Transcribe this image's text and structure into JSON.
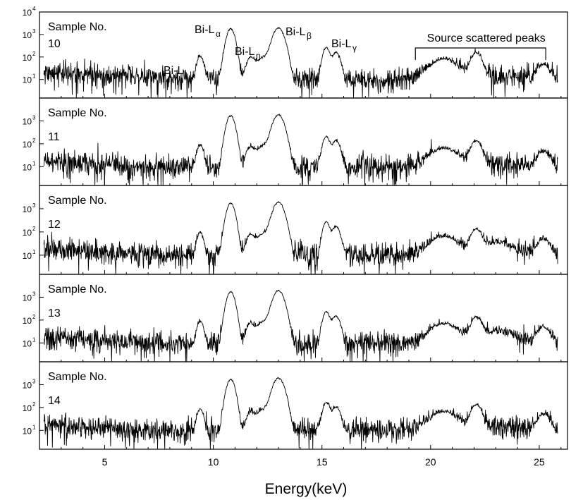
{
  "chart_data": {
    "type": "line",
    "xlabel": "Energy(keV)",
    "x_range": [
      2.0,
      26.3
    ],
    "x_ticks": [
      5,
      10,
      15,
      20,
      25
    ],
    "y_scale": "log",
    "y_range": [
      1.5,
      10000
    ],
    "y_tick_labels": [
      {
        "base": "10",
        "exp": "1"
      },
      {
        "base": "10",
        "exp": "2"
      },
      {
        "base": "10",
        "exp": "3"
      },
      {
        "base": "10",
        "exp": "4"
      }
    ],
    "sample_prefix": "Sample No.",
    "peak_labels": [
      {
        "main": "Bi-L",
        "sub": "l"
      },
      {
        "main": "Bi-L",
        "sub": "α"
      },
      {
        "main": "Bi-L",
        "sub": "η"
      },
      {
        "main": "Bi-L",
        "sub": "β"
      },
      {
        "main": "Bi-L",
        "sub": "γ"
      }
    ],
    "bracket_annotation": "Source scattered peaks",
    "bracket_range": [
      19.3,
      25.3
    ],
    "noise_hint": "log-noise sigma ~0.55 in ln-space, with occasional dropouts",
    "series": [
      {
        "name": "10",
        "baseline": [
          [
            2.0,
            20
          ],
          [
            4,
            17
          ],
          [
            6,
            13
          ],
          [
            8,
            11
          ],
          [
            10,
            11
          ],
          [
            12,
            11
          ],
          [
            14,
            10
          ],
          [
            16,
            10
          ],
          [
            18,
            10
          ],
          [
            20,
            13
          ],
          [
            22,
            15
          ],
          [
            24,
            15
          ],
          [
            26,
            10
          ]
        ],
        "peaks": [
          {
            "x": 9.4,
            "height": 95,
            "width": 0.12
          },
          {
            "x": 10.8,
            "height": 1800,
            "width": 0.15
          },
          {
            "x": 11.7,
            "height": 75,
            "width": 0.15
          },
          {
            "x": 13.0,
            "height": 1900,
            "width": 0.2
          },
          {
            "x": 12.4,
            "height": 90,
            "width": 0.35
          },
          {
            "x": 15.2,
            "height": 250,
            "width": 0.13
          },
          {
            "x": 15.65,
            "height": 150,
            "width": 0.15
          },
          {
            "x": 20.6,
            "height": 70,
            "width": 0.5
          },
          {
            "x": 22.1,
            "height": 140,
            "width": 0.2
          },
          {
            "x": 25.2,
            "height": 35,
            "width": 0.25
          }
        ]
      },
      {
        "name": "11",
        "baseline": [
          [
            2.0,
            18
          ],
          [
            4,
            14
          ],
          [
            6,
            11
          ],
          [
            8,
            10
          ],
          [
            10,
            10
          ],
          [
            12,
            10
          ],
          [
            14,
            10
          ],
          [
            16,
            10
          ],
          [
            18,
            10
          ],
          [
            20,
            12
          ],
          [
            22,
            14
          ],
          [
            24,
            13
          ],
          [
            26,
            9
          ]
        ],
        "peaks": [
          {
            "x": 9.4,
            "height": 80,
            "width": 0.12
          },
          {
            "x": 10.8,
            "height": 1700,
            "width": 0.15
          },
          {
            "x": 11.7,
            "height": 55,
            "width": 0.15
          },
          {
            "x": 13.0,
            "height": 1800,
            "width": 0.2
          },
          {
            "x": 12.4,
            "height": 80,
            "width": 0.35
          },
          {
            "x": 15.2,
            "height": 200,
            "width": 0.13
          },
          {
            "x": 15.65,
            "height": 130,
            "width": 0.15
          },
          {
            "x": 20.6,
            "height": 55,
            "width": 0.5
          },
          {
            "x": 22.1,
            "height": 120,
            "width": 0.2
          },
          {
            "x": 25.2,
            "height": 35,
            "width": 0.25
          }
        ]
      },
      {
        "name": "12",
        "baseline": [
          [
            2.0,
            22
          ],
          [
            4,
            14
          ],
          [
            6,
            11
          ],
          [
            8,
            10
          ],
          [
            10,
            10
          ],
          [
            12,
            10
          ],
          [
            14,
            10
          ],
          [
            16,
            10
          ],
          [
            18,
            10
          ],
          [
            20,
            13
          ],
          [
            22,
            15
          ],
          [
            24,
            14
          ],
          [
            26,
            9
          ]
        ],
        "peaks": [
          {
            "x": 9.4,
            "height": 85,
            "width": 0.12
          },
          {
            "x": 10.8,
            "height": 1700,
            "width": 0.15
          },
          {
            "x": 11.7,
            "height": 55,
            "width": 0.15
          },
          {
            "x": 13.0,
            "height": 1900,
            "width": 0.2
          },
          {
            "x": 12.4,
            "height": 80,
            "width": 0.35
          },
          {
            "x": 15.2,
            "height": 260,
            "width": 0.13
          },
          {
            "x": 15.65,
            "height": 160,
            "width": 0.15
          },
          {
            "x": 20.6,
            "height": 55,
            "width": 0.5
          },
          {
            "x": 22.1,
            "height": 120,
            "width": 0.2
          },
          {
            "x": 23.1,
            "height": 25,
            "width": 0.5
          },
          {
            "x": 25.2,
            "height": 40,
            "width": 0.25
          }
        ]
      },
      {
        "name": "13",
        "baseline": [
          [
            2.0,
            18
          ],
          [
            4,
            14
          ],
          [
            6,
            11
          ],
          [
            8,
            10
          ],
          [
            10,
            10
          ],
          [
            12,
            10
          ],
          [
            14,
            10
          ],
          [
            16,
            10
          ],
          [
            18,
            10
          ],
          [
            20,
            13
          ],
          [
            22,
            15
          ],
          [
            24,
            14
          ],
          [
            26,
            9
          ]
        ],
        "peaks": [
          {
            "x": 9.4,
            "height": 80,
            "width": 0.12
          },
          {
            "x": 10.8,
            "height": 1700,
            "width": 0.15
          },
          {
            "x": 11.7,
            "height": 50,
            "width": 0.15
          },
          {
            "x": 13.0,
            "height": 1900,
            "width": 0.2
          },
          {
            "x": 12.4,
            "height": 80,
            "width": 0.35
          },
          {
            "x": 15.2,
            "height": 220,
            "width": 0.13
          },
          {
            "x": 15.65,
            "height": 140,
            "width": 0.15
          },
          {
            "x": 20.6,
            "height": 60,
            "width": 0.5
          },
          {
            "x": 22.1,
            "height": 120,
            "width": 0.2
          },
          {
            "x": 23.1,
            "height": 22,
            "width": 0.5
          },
          {
            "x": 25.2,
            "height": 40,
            "width": 0.25
          }
        ]
      },
      {
        "name": "14",
        "baseline": [
          [
            2.0,
            18
          ],
          [
            4,
            14
          ],
          [
            6,
            11
          ],
          [
            8,
            10
          ],
          [
            10,
            10
          ],
          [
            12,
            10
          ],
          [
            14,
            10
          ],
          [
            16,
            10
          ],
          [
            18,
            10
          ],
          [
            20,
            13
          ],
          [
            22,
            15
          ],
          [
            24,
            14
          ],
          [
            26,
            9
          ]
        ],
        "peaks": [
          {
            "x": 9.4,
            "height": 75,
            "width": 0.12
          },
          {
            "x": 10.8,
            "height": 1700,
            "width": 0.15
          },
          {
            "x": 11.7,
            "height": 45,
            "width": 0.15
          },
          {
            "x": 13.0,
            "height": 1900,
            "width": 0.2
          },
          {
            "x": 12.4,
            "height": 80,
            "width": 0.35
          },
          {
            "x": 15.2,
            "height": 160,
            "width": 0.13
          },
          {
            "x": 15.65,
            "height": 100,
            "width": 0.15
          },
          {
            "x": 20.6,
            "height": 55,
            "width": 0.5
          },
          {
            "x": 22.1,
            "height": 120,
            "width": 0.2
          },
          {
            "x": 25.2,
            "height": 40,
            "width": 0.25
          }
        ]
      }
    ]
  }
}
